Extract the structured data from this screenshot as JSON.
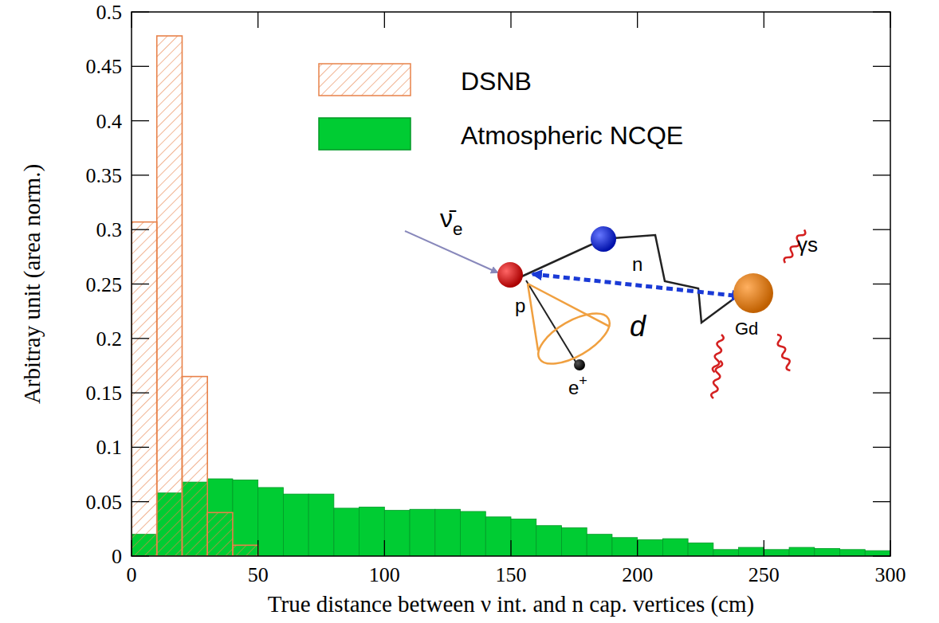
{
  "chart_data": {
    "type": "histogram",
    "x_label": "True distance between ν int. and n cap. vertices (cm)",
    "y_label": "Arbitray unit (area norm.)",
    "bins": [
      0,
      10,
      20,
      30,
      40,
      50,
      60,
      70,
      80,
      90,
      100,
      110,
      120,
      130,
      140,
      150,
      160,
      170,
      180,
      190,
      200,
      210,
      220,
      230,
      240,
      250,
      260,
      270,
      280,
      290,
      300
    ],
    "series": [
      {
        "name": "Atmospheric NCQE",
        "color": "#00cc33",
        "values": [
          0.02,
          0.058,
          0.068,
          0.071,
          0.07,
          0.063,
          0.057,
          0.057,
          0.044,
          0.045,
          0.042,
          0.043,
          0.043,
          0.041,
          0.036,
          0.034,
          0.028,
          0.026,
          0.02,
          0.017,
          0.015,
          0.016,
          0.012,
          0.006,
          0.008,
          0.006,
          0.008,
          0.007,
          0.006,
          0.005
        ]
      },
      {
        "name": "DSNB",
        "color": "#e8824a",
        "values": [
          0.307,
          0.478,
          0.165,
          0.04,
          0.01,
          0,
          0,
          0,
          0,
          0,
          0,
          0,
          0,
          0,
          0,
          0,
          0,
          0,
          0,
          0,
          0,
          0,
          0,
          0,
          0,
          0,
          0,
          0,
          0,
          0
        ]
      }
    ],
    "xlim": [
      0,
      300
    ],
    "ylim": [
      0,
      0.5
    ],
    "xticks": [
      0,
      50,
      100,
      150,
      200,
      250,
      300
    ],
    "yticks": [
      0,
      0.05,
      0.1,
      0.15,
      0.2,
      0.25,
      0.3,
      0.35,
      0.4,
      0.45,
      0.5
    ],
    "grid": false,
    "legend": "top",
    "annotations": [
      {
        "text": "ν̄",
        "sub": "e"
      },
      {
        "text": "p"
      },
      {
        "text": "n"
      },
      {
        "text": "e",
        "sup": "+"
      },
      {
        "text": "γs"
      },
      {
        "text": "Gd"
      },
      {
        "text": "d"
      }
    ]
  }
}
